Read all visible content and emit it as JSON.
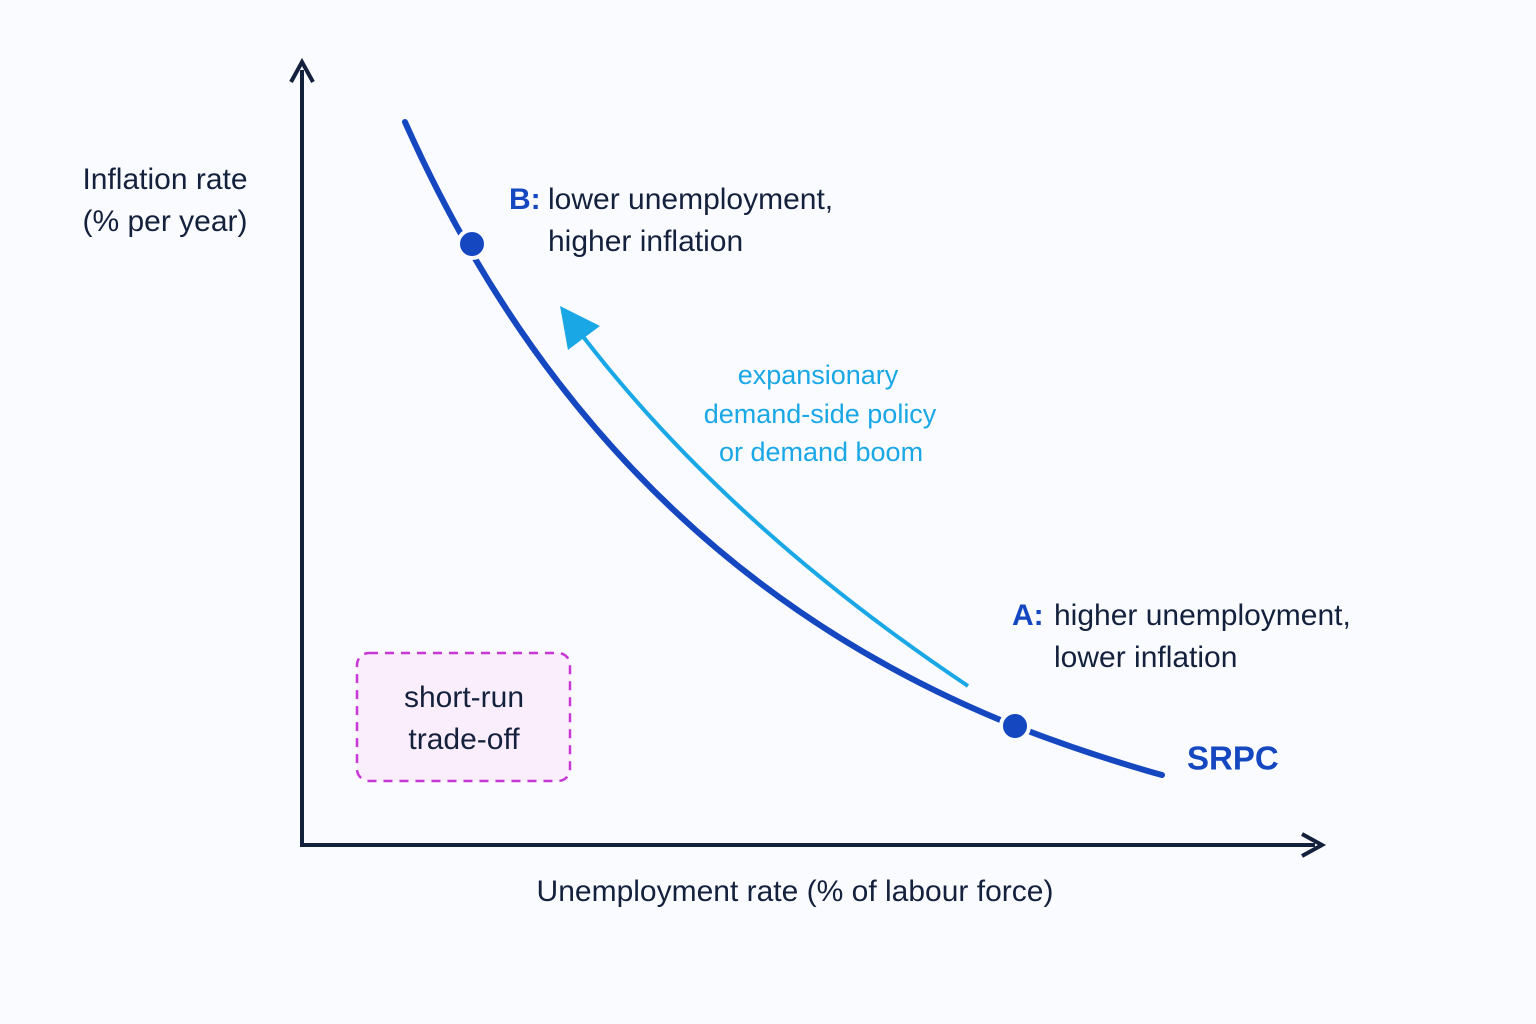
{
  "y_axis": {
    "label_lines": [
      "Inflation rate",
      "(% per year)"
    ]
  },
  "x_axis": {
    "label": "Unemployment rate (% of labour force)"
  },
  "points": [
    {
      "tag": "B:",
      "lines": [
        "lower unemployment,",
        "higher inflation"
      ]
    },
    {
      "tag": "A:",
      "lines": [
        "higher unemployment,",
        "lower inflation"
      ]
    }
  ],
  "movement": {
    "lines": [
      "expansionary",
      "demand-side policy",
      "or demand boom"
    ]
  },
  "curve": {
    "label": "SRPC"
  },
  "note": {
    "lines": [
      "short-run",
      "trade-off"
    ]
  }
}
